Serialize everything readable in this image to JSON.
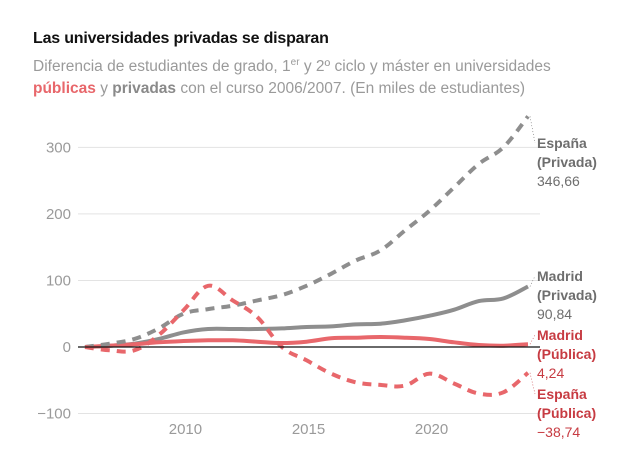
{
  "header": {
    "title": "Las universidades privadas se disparan",
    "subtitle_part1": "Diferencia de estudiantes de grado, 1",
    "subtitle_sup": "er",
    "subtitle_part2": " y 2º ciclo y máster en universidades ",
    "subtitle_pub": "públicas",
    "subtitle_y": " y ",
    "subtitle_priv": "privadas",
    "subtitle_part3": " con el curso 2006/2007. (En miles de estudiantes)"
  },
  "colors": {
    "publica": "#e8676b",
    "privada": "#8e8e8e",
    "publica_label": "#c73b42",
    "privada_label": "#6e6e6e",
    "grid": "#e3e3e3",
    "zero": "#111111"
  },
  "chart_data": {
    "type": "line",
    "title": "Las universidades privadas se disparan",
    "xlabel": "",
    "ylabel": "Miles de estudiantes",
    "xlim": [
      2006,
      2024
    ],
    "ylim": [
      -100,
      350
    ],
    "x_ticks": [
      2010,
      2015,
      2020
    ],
    "y_ticks": [
      -100,
      0,
      100,
      200,
      300
    ],
    "grid": true,
    "legend": "inline-right",
    "x": [
      2006,
      2007,
      2008,
      2009,
      2010,
      2011,
      2012,
      2013,
      2014,
      2015,
      2016,
      2017,
      2018,
      2019,
      2020,
      2021,
      2022,
      2023,
      2024
    ],
    "series": [
      {
        "name": "España (Privada)",
        "label_line1": "España",
        "label_line2": "(Privada)",
        "final_label": "346,66",
        "group": "privada",
        "style": "dashed",
        "values": [
          0,
          5,
          12,
          28,
          50,
          57,
          62,
          70,
          78,
          92,
          110,
          130,
          145,
          175,
          205,
          240,
          275,
          300,
          346.66
        ]
      },
      {
        "name": "Madrid (Privada)",
        "label_line1": "Madrid",
        "label_line2": "(Privada)",
        "final_label": "90,84",
        "group": "privada",
        "style": "solid",
        "values": [
          0,
          2,
          5,
          12,
          22,
          27,
          27,
          27,
          28,
          30,
          31,
          34,
          35,
          40,
          47,
          56,
          69,
          73,
          90.84
        ]
      },
      {
        "name": "Madrid (Pública)",
        "label_line1": "Madrid",
        "label_line2": "(Pública)",
        "final_label": "4,24",
        "group": "publica",
        "style": "solid",
        "values": [
          0,
          2,
          4,
          7,
          9,
          10,
          10,
          8,
          6,
          8,
          13,
          14,
          15,
          14,
          12,
          7,
          3,
          2,
          4.24
        ]
      },
      {
        "name": "España (Pública)",
        "label_line1": "España",
        "label_line2": "(Pública)",
        "final_label": "−38,74",
        "group": "publica",
        "style": "dashed",
        "values": [
          0,
          -5,
          -5,
          18,
          55,
          92,
          70,
          45,
          0,
          -20,
          -40,
          -53,
          -57,
          -58,
          -40,
          -55,
          -70,
          -68,
          -38.74
        ]
      }
    ]
  }
}
